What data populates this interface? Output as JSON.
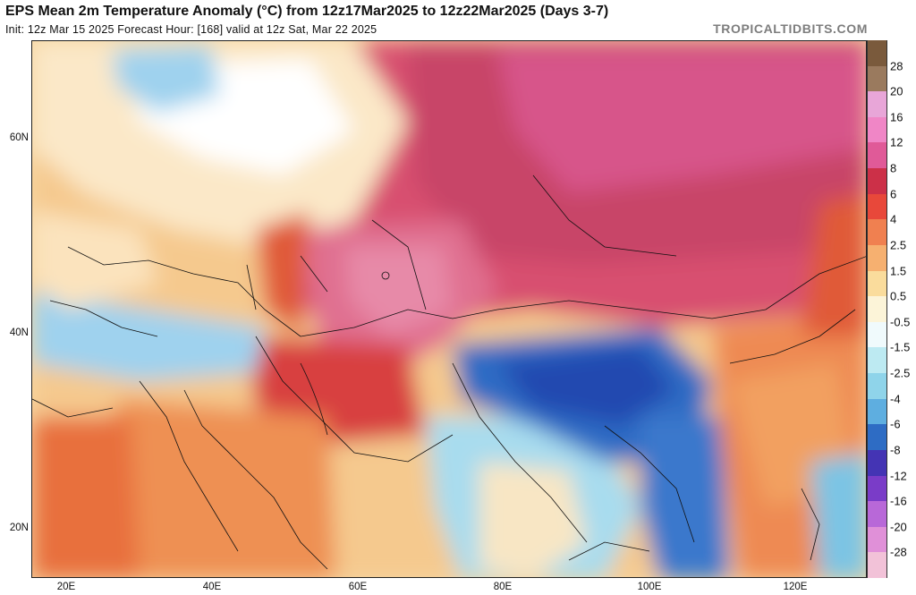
{
  "header": {
    "title": "EPS Mean 2m Temperature Anomaly (°C) from 12z17Mar2025 to 12z22Mar2025 (Days 3-7)",
    "subtitle": "Init: 12z Mar 15 2025   Forecast Hour: [168]   valid at 12z Sat, Mar 22 2025",
    "brand": "TROPICALTIDBITS.COM"
  },
  "map": {
    "lat_labels": [
      "60N",
      "40N",
      "20N"
    ],
    "lon_labels": [
      "20E",
      "40E",
      "60E",
      "80E",
      "100E",
      "120E"
    ],
    "lon_range": [
      15,
      130
    ],
    "lat_range": [
      15,
      70
    ]
  },
  "colorbar": {
    "labels": [
      "28",
      "20",
      "16",
      "12",
      "8",
      "6",
      "4",
      "2.5",
      "1.5",
      "0.5",
      "-0.5",
      "-1.5",
      "-2.5",
      "-4",
      "-6",
      "-8",
      "-12",
      "-16",
      "-20",
      "-28"
    ],
    "colors": [
      "#7a5a3c",
      "#9a7a5e",
      "#e8a6d8",
      "#f086c6",
      "#e05a98",
      "#cc3048",
      "#e8483a",
      "#f08050",
      "#f6b070",
      "#fadc9c",
      "#fcf4d8",
      "#f0fafc",
      "#bdeaf2",
      "#8fd4ea",
      "#5eaee0",
      "#2e6cc4",
      "#4434b4",
      "#7a3cc8",
      "#b868d8",
      "#e090d8",
      "#f2c2d8"
    ]
  }
}
